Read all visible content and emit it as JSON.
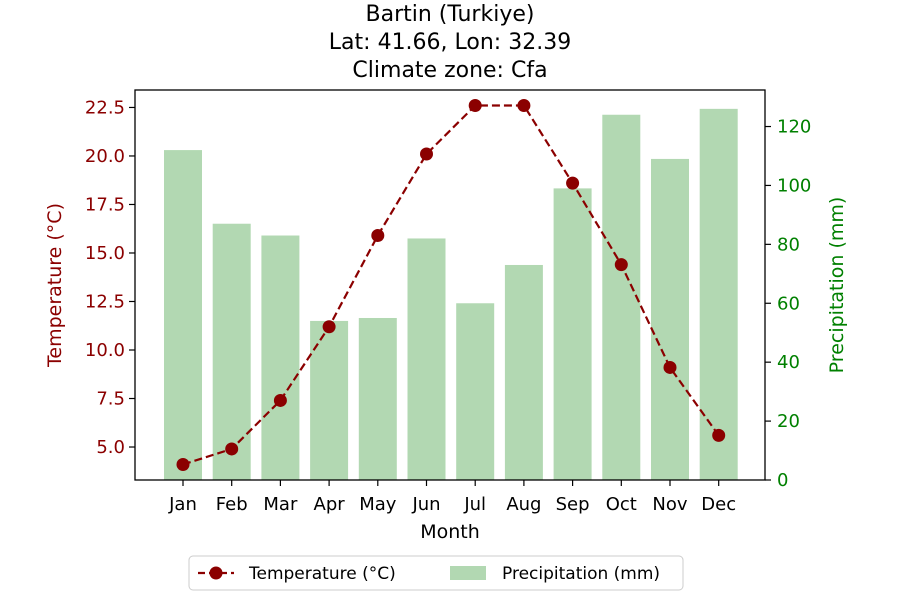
{
  "chart_data": {
    "type": "bar+line",
    "title_lines": [
      "Bartin (Turkiye)",
      "Lat: 41.66, Lon: 32.39",
      "Climate zone: Cfa"
    ],
    "xlabel": "Month",
    "categories": [
      "Jan",
      "Feb",
      "Mar",
      "Apr",
      "May",
      "Jun",
      "Jul",
      "Aug",
      "Sep",
      "Oct",
      "Nov",
      "Dec"
    ],
    "series": [
      {
        "name": "Temperature (°C)",
        "kind": "line",
        "axis": "left",
        "color": "#8b0000",
        "values": [
          4.1,
          4.9,
          7.4,
          11.2,
          15.9,
          20.1,
          22.6,
          22.6,
          18.6,
          14.4,
          9.1,
          5.6
        ]
      },
      {
        "name": "Precipitation (mm)",
        "kind": "bar",
        "axis": "right",
        "color": "#b2d8b2",
        "values": [
          112,
          87,
          83,
          54,
          55,
          82,
          60,
          73,
          99,
          124,
          109,
          126
        ]
      }
    ],
    "y_left": {
      "label": "Temperature (°C)",
      "color": "#8b0000",
      "ylim": [
        3.3,
        23.4
      ],
      "ticks": [
        5.0,
        7.5,
        10.0,
        12.5,
        15.0,
        17.5,
        20.0,
        22.5
      ],
      "tick_labels": [
        "5.0",
        "7.5",
        "10.0",
        "12.5",
        "15.0",
        "17.5",
        "20.0",
        "22.5"
      ]
    },
    "y_right": {
      "label": "Precipitation (mm)",
      "color": "#008000",
      "ylim": [
        0,
        132.4
      ],
      "ticks": [
        0,
        20,
        40,
        60,
        80,
        100,
        120
      ],
      "tick_labels": [
        "0",
        "20",
        "40",
        "60",
        "80",
        "100",
        "120"
      ]
    },
    "grid": false,
    "legend": "bottom-center"
  }
}
